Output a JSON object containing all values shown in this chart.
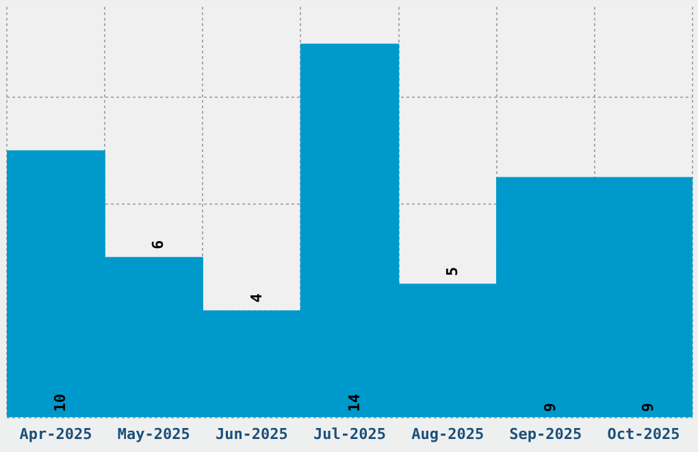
{
  "chart_data": {
    "type": "bar",
    "categories": [
      "Apr-2025",
      "May-2025",
      "Jun-2025",
      "Jul-2025",
      "Aug-2025",
      "Sep-2025",
      "Oct-2025"
    ],
    "values": [
      10,
      6,
      4,
      14,
      5,
      9,
      9
    ],
    "color": "#0099cc",
    "ylim": [
      0,
      15.4
    ],
    "yticks": [
      {
        "value": 0,
        "label": null
      },
      {
        "value": 4,
        "label": null
      },
      {
        "value": 8,
        "label": null
      },
      {
        "value": 12,
        "label": null
      }
    ],
    "grid": true,
    "tick_labels": "x",
    "data_labels": true
  }
}
